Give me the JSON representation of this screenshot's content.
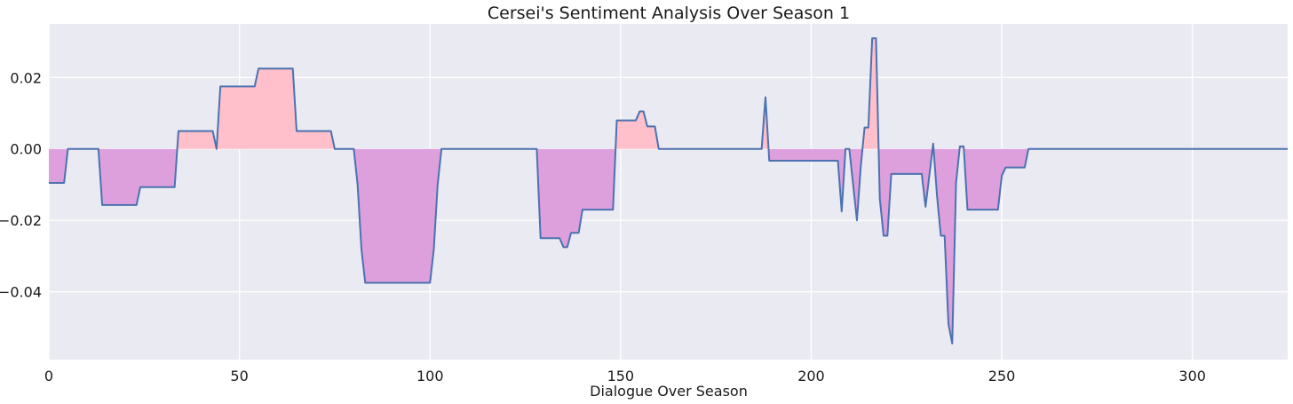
{
  "chart_data": {
    "type": "area",
    "title": "Cersei's Sentiment Analysis Over Season 1",
    "xlabel": "Dialogue Over Season",
    "ylabel": "",
    "xlim": [
      0,
      325
    ],
    "ylim": [
      -0.059,
      0.035
    ],
    "xticks": [
      0,
      50,
      100,
      150,
      200,
      250,
      300
    ],
    "yticks": [
      0.02,
      0.0,
      -0.02,
      -0.04
    ],
    "ytick_labels": [
      "0.02",
      "0.00",
      "−0.02",
      "−0.04"
    ],
    "grid": true,
    "colors": {
      "background": "#EAEAF2",
      "line": "#4C72B0",
      "positive_fill": "#FFC0CB",
      "negative_fill": "#DDA0DD"
    },
    "series": [
      {
        "x": [
          0,
          4,
          5,
          13,
          14,
          23,
          24,
          33,
          34,
          43,
          44,
          45,
          54,
          55,
          64,
          65,
          74,
          75,
          80,
          81,
          82,
          83,
          100,
          101,
          102,
          103,
          128,
          129,
          134,
          135,
          136,
          137,
          139,
          140,
          148,
          149,
          154,
          155,
          156,
          157,
          159,
          160,
          187,
          188,
          189,
          207,
          208,
          209,
          210,
          212,
          213,
          214,
          215,
          216,
          217,
          218,
          219,
          220,
          221,
          229,
          230,
          232,
          233,
          234,
          235,
          236,
          237,
          238,
          239,
          240,
          241,
          249,
          250,
          251,
          256,
          257,
          325
        ],
        "y": [
          -0.0095,
          -0.0095,
          0.0,
          0.0,
          -0.0157,
          -0.0157,
          -0.0107,
          -0.0107,
          0.005,
          0.005,
          0.0,
          0.0175,
          0.0175,
          0.0225,
          0.0225,
          0.005,
          0.005,
          0.0,
          0.0,
          -0.01,
          -0.028,
          -0.0375,
          -0.0375,
          -0.028,
          -0.01,
          0.0,
          0.0,
          -0.025,
          -0.025,
          -0.0275,
          -0.0275,
          -0.0235,
          -0.0235,
          -0.017,
          -0.017,
          0.008,
          0.008,
          0.0105,
          0.0105,
          0.0063,
          0.0063,
          0.0,
          0.0,
          0.0145,
          -0.0033,
          -0.0033,
          -0.0175,
          0.0,
          0.0,
          -0.02,
          -0.005,
          0.006,
          0.006,
          0.031,
          0.031,
          -0.014,
          -0.0243,
          -0.0243,
          -0.007,
          -0.007,
          -0.0162,
          0.0015,
          -0.013,
          -0.0243,
          -0.0243,
          -0.049,
          -0.0545,
          -0.0095,
          0.0007,
          0.0007,
          -0.017,
          -0.017,
          -0.0075,
          -0.0052,
          -0.0052,
          0.0,
          0.0
        ]
      }
    ]
  }
}
